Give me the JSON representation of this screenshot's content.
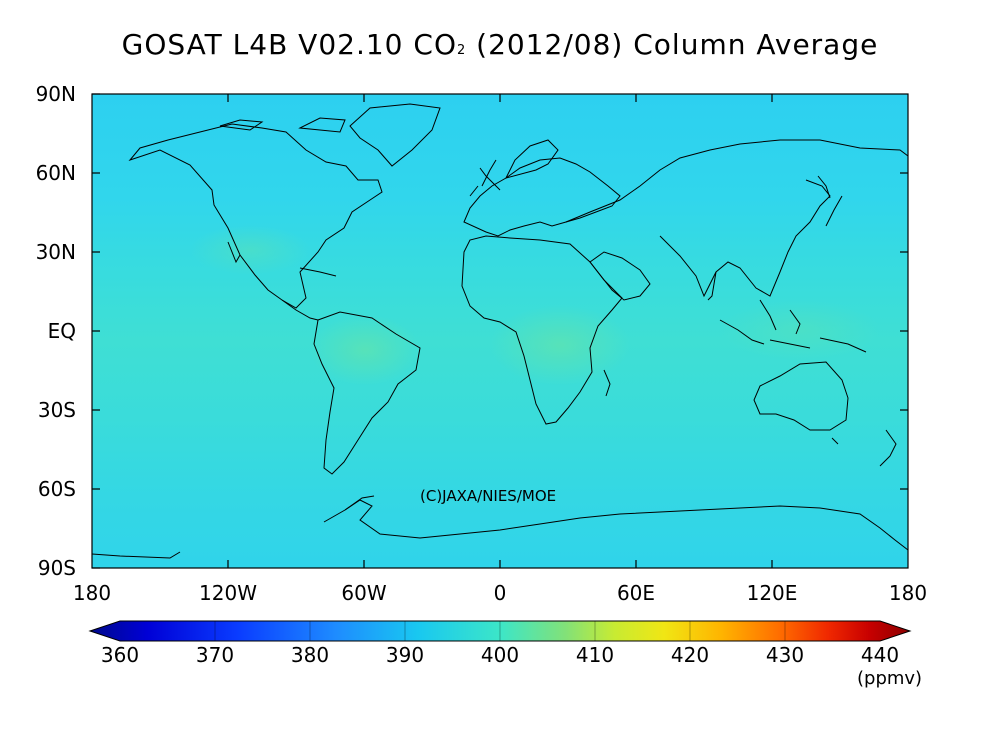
{
  "title": {
    "prefix": "GOSAT L4B V02.10 CO",
    "subscript": "2",
    "suffix": " (2012/08) Column Average"
  },
  "map": {
    "lat_labels": [
      "90N",
      "60N",
      "30N",
      "EQ",
      "30S",
      "60S",
      "90S"
    ],
    "lon_labels": [
      "180",
      "120W",
      "60W",
      "0",
      "60E",
      "120E",
      "180"
    ],
    "copyright": "(C)JAXA/NIES/MOE",
    "projection": "equirectangular",
    "lon_range": [
      -180,
      180
    ],
    "lat_range": [
      -90,
      90
    ]
  },
  "colorbar": {
    "tick_labels": [
      "360",
      "370",
      "380",
      "390",
      "400",
      "410",
      "420",
      "430",
      "440"
    ],
    "units": "(ppmv)",
    "range": [
      360,
      440
    ],
    "colors": [
      "#000a8c",
      "#0000d6",
      "#0a3cff",
      "#1e8cff",
      "#19c8f0",
      "#3ce6c8",
      "#82e178",
      "#c8eb32",
      "#f0e614",
      "#ffb400",
      "#ff6e00",
      "#f02800",
      "#c80000",
      "#8c0000"
    ]
  },
  "field": {
    "dominant_value_ppmv": 392,
    "band_colors": [
      "#2fd2ef",
      "#32d8ea",
      "#3addd9",
      "#40dfd2",
      "#3ad9de"
    ]
  }
}
